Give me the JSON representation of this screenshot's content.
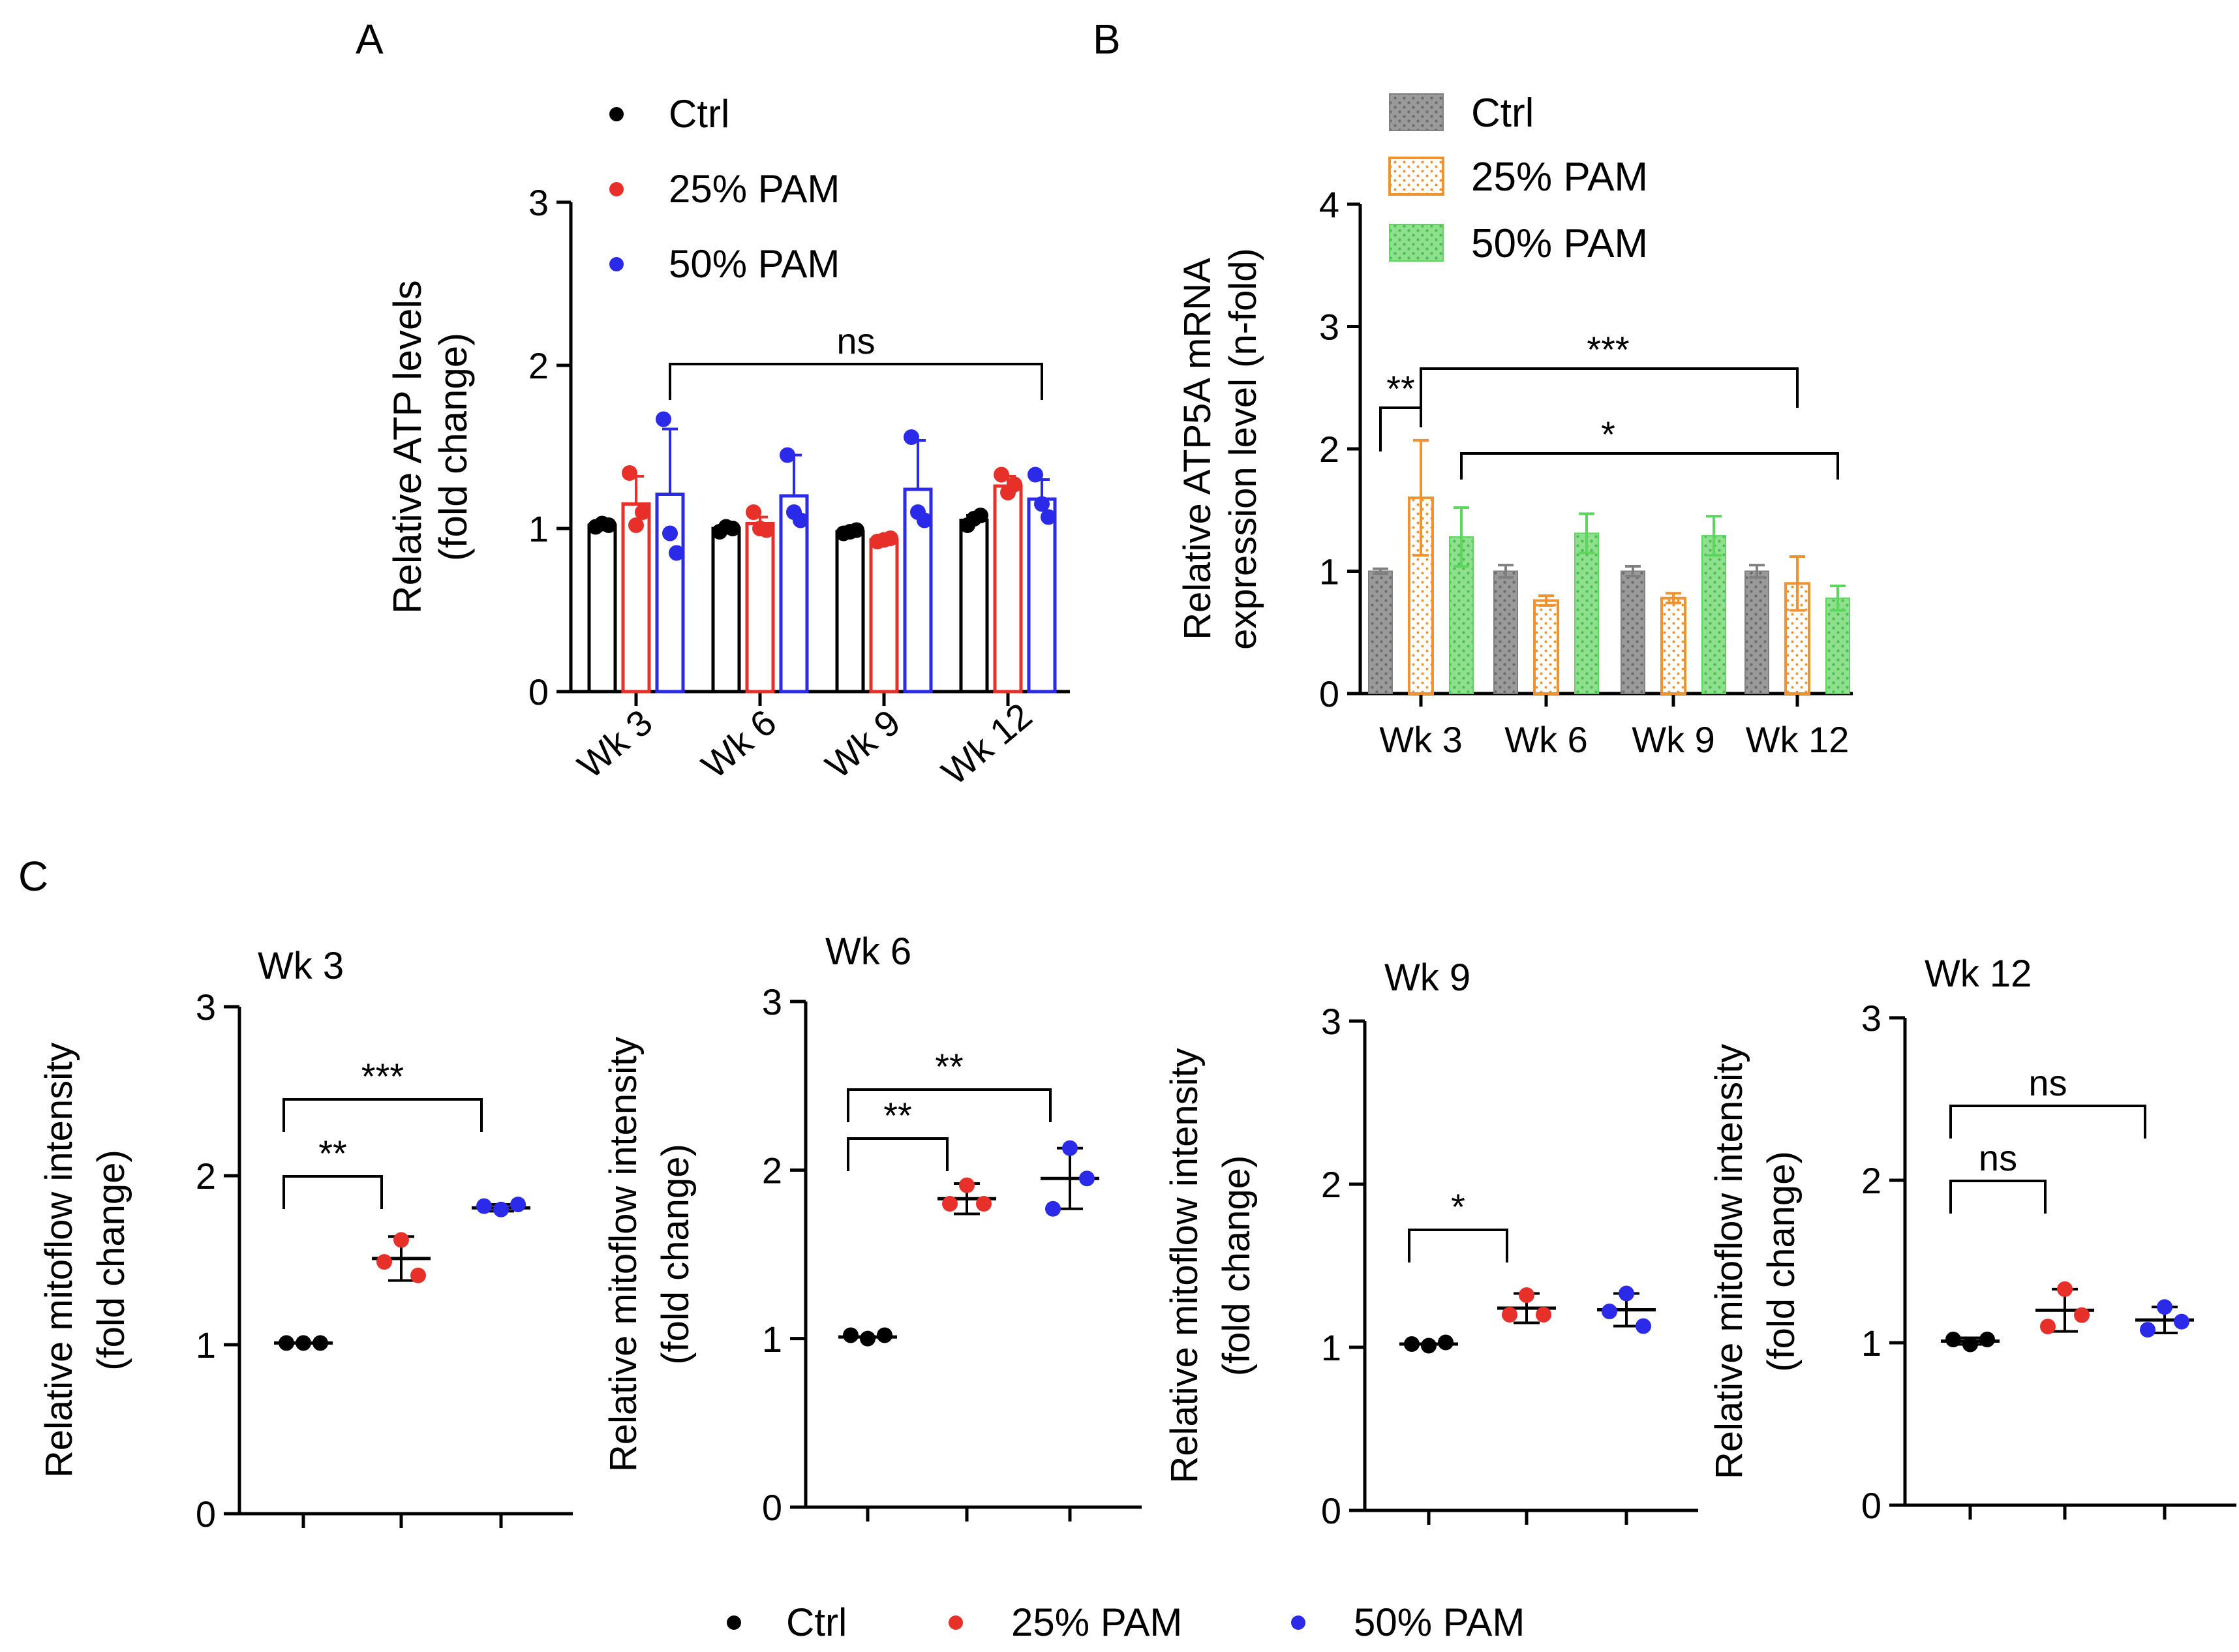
{
  "colors": {
    "ctrl": "#000000",
    "pam25": "#e8302a",
    "pam50": "#2a2ae8",
    "barCtrl": "#808080",
    "barPam25": "#f0922e",
    "barPam50": "#5cd65c"
  },
  "chart_data": [
    {
      "panel": "A",
      "type": "bar",
      "title": "",
      "ylabel": [
        "Relative ATP levels",
        "(fold change)"
      ],
      "ylim": [
        0,
        3
      ],
      "yticks": [
        "0",
        "1",
        "2",
        "3"
      ],
      "categories": [
        "Wk 3",
        "Wk 6",
        "Wk 9",
        "Wk 12"
      ],
      "legend": [
        "Ctrl",
        "25% PAM",
        "50% PAM"
      ],
      "series": [
        {
          "name": "Ctrl",
          "values": [
            1.02,
            1.0,
            0.98,
            1.05
          ],
          "errors": [
            0.01,
            0.02,
            0.01,
            0.03
          ],
          "points": [
            [
              1.01,
              1.03,
              1.02
            ],
            [
              0.98,
              1.01,
              1.0
            ],
            [
              0.97,
              0.98,
              0.99
            ],
            [
              1.02,
              1.06,
              1.08
            ]
          ]
        },
        {
          "name": "25% PAM",
          "values": [
            1.15,
            1.03,
            0.93,
            1.26
          ],
          "errors": [
            0.17,
            0.04,
            0.01,
            0.06
          ],
          "points": [
            [
              1.34,
              1.02,
              1.1
            ],
            [
              1.1,
              1.0,
              0.99
            ],
            [
              0.92,
              0.93,
              0.94
            ],
            [
              1.33,
              1.22,
              1.27
            ]
          ]
        },
        {
          "name": "50% PAM",
          "values": [
            1.21,
            1.2,
            1.24,
            1.18
          ],
          "errors": [
            0.4,
            0.25,
            0.3,
            0.12
          ],
          "points": [
            [
              1.67,
              0.97,
              0.85
            ],
            [
              1.45,
              1.1,
              1.05
            ],
            [
              1.56,
              1.1,
              1.05
            ],
            [
              1.33,
              1.15,
              1.07
            ]
          ]
        }
      ],
      "annotations": [
        {
          "text": "ns",
          "from": 0,
          "to": 3
        }
      ]
    },
    {
      "panel": "B",
      "type": "bar",
      "title": "",
      "ylabel": [
        "Relative ATP5A mRNA",
        "expression level (n-fold)"
      ],
      "ylim": [
        0,
        4
      ],
      "yticks": [
        "0",
        "1",
        "2",
        "3",
        "4"
      ],
      "categories": [
        "Wk 3",
        "Wk 6",
        "Wk 9",
        "Wk 12"
      ],
      "legend": [
        "Ctrl",
        "25% PAM",
        "50% PAM"
      ],
      "series": [
        {
          "name": "Ctrl",
          "values": [
            1.0,
            1.0,
            1.0,
            1.0
          ],
          "errors": [
            0.02,
            0.05,
            0.04,
            0.05
          ]
        },
        {
          "name": "25% PAM",
          "values": [
            1.6,
            0.76,
            0.78,
            0.9
          ],
          "errors": [
            0.47,
            0.04,
            0.04,
            0.22
          ]
        },
        {
          "name": "50% PAM",
          "values": [
            1.28,
            1.31,
            1.29,
            0.78
          ],
          "errors": [
            0.24,
            0.16,
            0.16,
            0.1
          ]
        }
      ],
      "annotations": [
        {
          "text": "**",
          "desc": "Wk 3 Ctrl vs 25% PAM"
        },
        {
          "text": "***",
          "desc": "Wk 3 25% PAM vs Wk 12 25% PAM"
        },
        {
          "text": "*",
          "desc": "Wk 3 50% PAM vs Wk 12 50% PAM"
        }
      ]
    },
    {
      "panel": "C",
      "type": "scatter",
      "title": "Wk 3",
      "ylabel": [
        "Relative mitoflow intensity",
        "(fold change)"
      ],
      "ylim": [
        0,
        3
      ],
      "yticks": [
        "0",
        "1",
        "2",
        "3"
      ],
      "groups": [
        "Ctrl",
        "25% PAM",
        "50% PAM"
      ],
      "mean": [
        1.01,
        1.51,
        1.81
      ],
      "sd": [
        0.005,
        0.13,
        0.02
      ],
      "points": [
        [
          1.01,
          1.01,
          1.01
        ],
        [
          1.62,
          1.49,
          1.41
        ],
        [
          1.8,
          1.82,
          1.83
        ]
      ],
      "annotations": [
        {
          "text": "**",
          "from": 0,
          "to": 1
        },
        {
          "text": "***",
          "from": 0,
          "to": 2
        }
      ]
    },
    {
      "panel": "C",
      "type": "scatter",
      "title": "Wk 6",
      "ylabel": [
        "Relative mitoflow intensity",
        "(fold change)"
      ],
      "ylim": [
        0,
        3
      ],
      "yticks": [
        "0",
        "1",
        "2",
        "3"
      ],
      "groups": [
        "Ctrl",
        "25% PAM",
        "50% PAM"
      ],
      "mean": [
        1.01,
        1.83,
        1.95
      ],
      "sd": [
        0.01,
        0.09,
        0.18
      ],
      "points": [
        [
          1.0,
          1.02,
          1.02
        ],
        [
          1.91,
          1.8,
          1.8
        ],
        [
          2.13,
          1.77,
          1.95
        ]
      ],
      "annotations": [
        {
          "text": "**",
          "from": 0,
          "to": 1
        },
        {
          "text": "**",
          "from": 0,
          "to": 2
        }
      ]
    },
    {
      "panel": "C",
      "type": "scatter",
      "title": "Wk 9",
      "ylabel": [
        "Relative mitoflow intensity",
        "(fold change)"
      ],
      "ylim": [
        0,
        3
      ],
      "yticks": [
        "0",
        "1",
        "2",
        "3"
      ],
      "groups": [
        "Ctrl",
        "25% PAM",
        "50% PAM"
      ],
      "mean": [
        1.02,
        1.24,
        1.23
      ],
      "sd": [
        0.01,
        0.09,
        0.1
      ],
      "points": [
        [
          1.01,
          1.02,
          1.03
        ],
        [
          1.32,
          1.2,
          1.2
        ],
        [
          1.33,
          1.22,
          1.13
        ]
      ],
      "annotations": [
        {
          "text": "*",
          "from": 0,
          "to": 1
        }
      ]
    },
    {
      "panel": "C",
      "type": "scatter",
      "title": "Wk 12",
      "ylabel": [
        "Relative mitoflow intensity",
        "(fold change)"
      ],
      "ylim": [
        0,
        3
      ],
      "yticks": [
        "0",
        "1",
        "2",
        "3"
      ],
      "groups": [
        "Ctrl",
        "25% PAM",
        "50% PAM"
      ],
      "mean": [
        1.01,
        1.2,
        1.14
      ],
      "sd": [
        0.02,
        0.13,
        0.08
      ],
      "points": [
        [
          0.99,
          1.02,
          1.02
        ],
        [
          1.33,
          1.1,
          1.17
        ],
        [
          1.22,
          1.08,
          1.13
        ]
      ],
      "annotations": [
        {
          "text": "ns",
          "from": 0,
          "to": 1
        },
        {
          "text": "ns",
          "from": 0,
          "to": 2
        }
      ]
    }
  ],
  "panel_labels": [
    "A",
    "B",
    "C"
  ],
  "bottom_legend": [
    "Ctrl",
    "25% PAM",
    "50% PAM"
  ]
}
